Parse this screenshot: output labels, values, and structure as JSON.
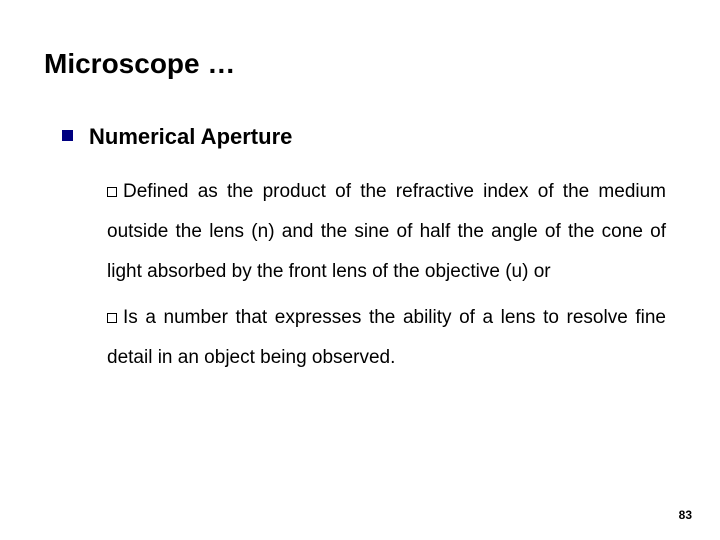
{
  "slide": {
    "title": "Microscope …",
    "heading": "Numerical Aperture",
    "bullets": [
      "Defined as the product of the refractive index of the medium outside the lens (n) and the sine of half the angle of the cone of light absorbed by the front lens of the objective (u)  or",
      "Is a number  that expresses the ability of a lens to resolve fine detail in an object being observed."
    ],
    "page_number": "83",
    "colors": {
      "title": "#000000",
      "bullet_square": "#000080",
      "text": "#000000",
      "background": "#ffffff"
    },
    "fonts": {
      "title_size": 28,
      "heading_size": 22,
      "body_size": 19,
      "pagenum_size": 12
    }
  }
}
